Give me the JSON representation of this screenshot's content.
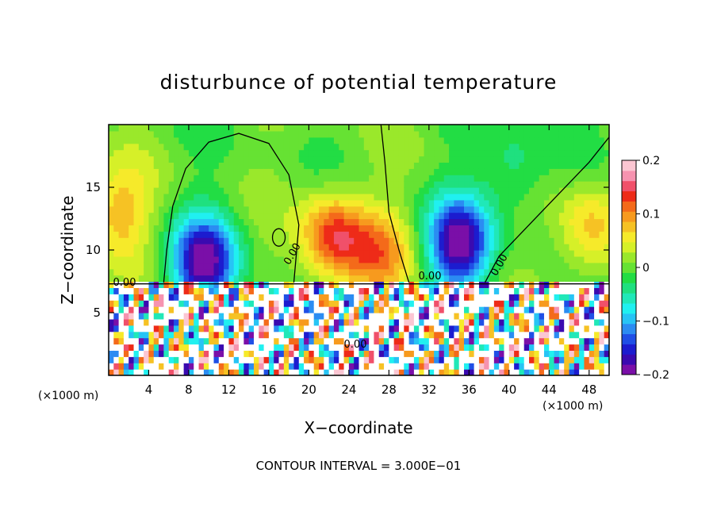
{
  "chart_data": {
    "type": "heatmap",
    "title": "disturbunce of potential temperature",
    "xlabel": "X−coordinate",
    "ylabel": "Z−coordinate",
    "x_unit_left": "(×1000 m)",
    "x_unit_right": "(×1000 m)",
    "footer": "CONTOUR INTERVAL = 3.000E−01",
    "xlim": [
      0,
      50
    ],
    "ylim": [
      0,
      20
    ],
    "x_ticks": [
      {
        "value": 4,
        "label": "4"
      },
      {
        "value": 8,
        "label": "8"
      },
      {
        "value": 12,
        "label": "12"
      },
      {
        "value": 16,
        "label": "16"
      },
      {
        "value": 20,
        "label": "20"
      },
      {
        "value": 24,
        "label": "24"
      },
      {
        "value": 28,
        "label": "28"
      },
      {
        "value": 32,
        "label": "32"
      },
      {
        "value": 36,
        "label": "36"
      },
      {
        "value": 40,
        "label": "40"
      },
      {
        "value": 44,
        "label": "44"
      },
      {
        "value": 48,
        "label": "48"
      }
    ],
    "y_ticks": [
      {
        "value": 5,
        "label": "5"
      },
      {
        "value": 10,
        "label": "10"
      },
      {
        "value": 15,
        "label": "15"
      }
    ],
    "colorbar": {
      "range": [
        -0.2,
        0.2
      ],
      "ticks": [
        {
          "value": 0.2,
          "label": "0.2"
        },
        {
          "value": 0.1,
          "label": "0.1"
        },
        {
          "value": 0.0,
          "label": "0"
        },
        {
          "value": -0.1,
          "label": "−0.1"
        },
        {
          "value": -0.2,
          "label": "−0.2"
        }
      ],
      "colors": [
        "#7a0fa8",
        "#3a0ab0",
        "#1c1ccf",
        "#1f4fe6",
        "#2b8cf2",
        "#27c4f5",
        "#20f0f0",
        "#20e8b8",
        "#1fe07f",
        "#22dd44",
        "#66e233",
        "#9ae82b",
        "#d6f028",
        "#f6ea2a",
        "#f6c224",
        "#f79a1e",
        "#f46a1a",
        "#ee2b18",
        "#f0506a",
        "#f693b0",
        "#fbc6d2"
      ]
    },
    "contour_labels": [
      "0.00",
      "0.00",
      "0.00",
      "0.00",
      "0.00"
    ],
    "field_features": {
      "background": 0.0,
      "warm_plumes": [
        {
          "x": 22.5,
          "z": 11.0,
          "amplitude": 0.14
        },
        {
          "x": 27.0,
          "z": 9.5,
          "amplitude": 0.09
        },
        {
          "x": 48.0,
          "z": 11.5,
          "amplitude": 0.08
        },
        {
          "x": 1.0,
          "z": 13.0,
          "amplitude": 0.08
        }
      ],
      "cool_plumes": [
        {
          "x": 9.5,
          "z": 9.0,
          "amplitude": -0.19
        },
        {
          "x": 35.0,
          "z": 10.5,
          "amplitude": -0.19
        },
        {
          "x": 40.5,
          "z": 16.5,
          "amplitude": -0.05
        }
      ],
      "boundary_layer_top_z": 7.3
    }
  }
}
